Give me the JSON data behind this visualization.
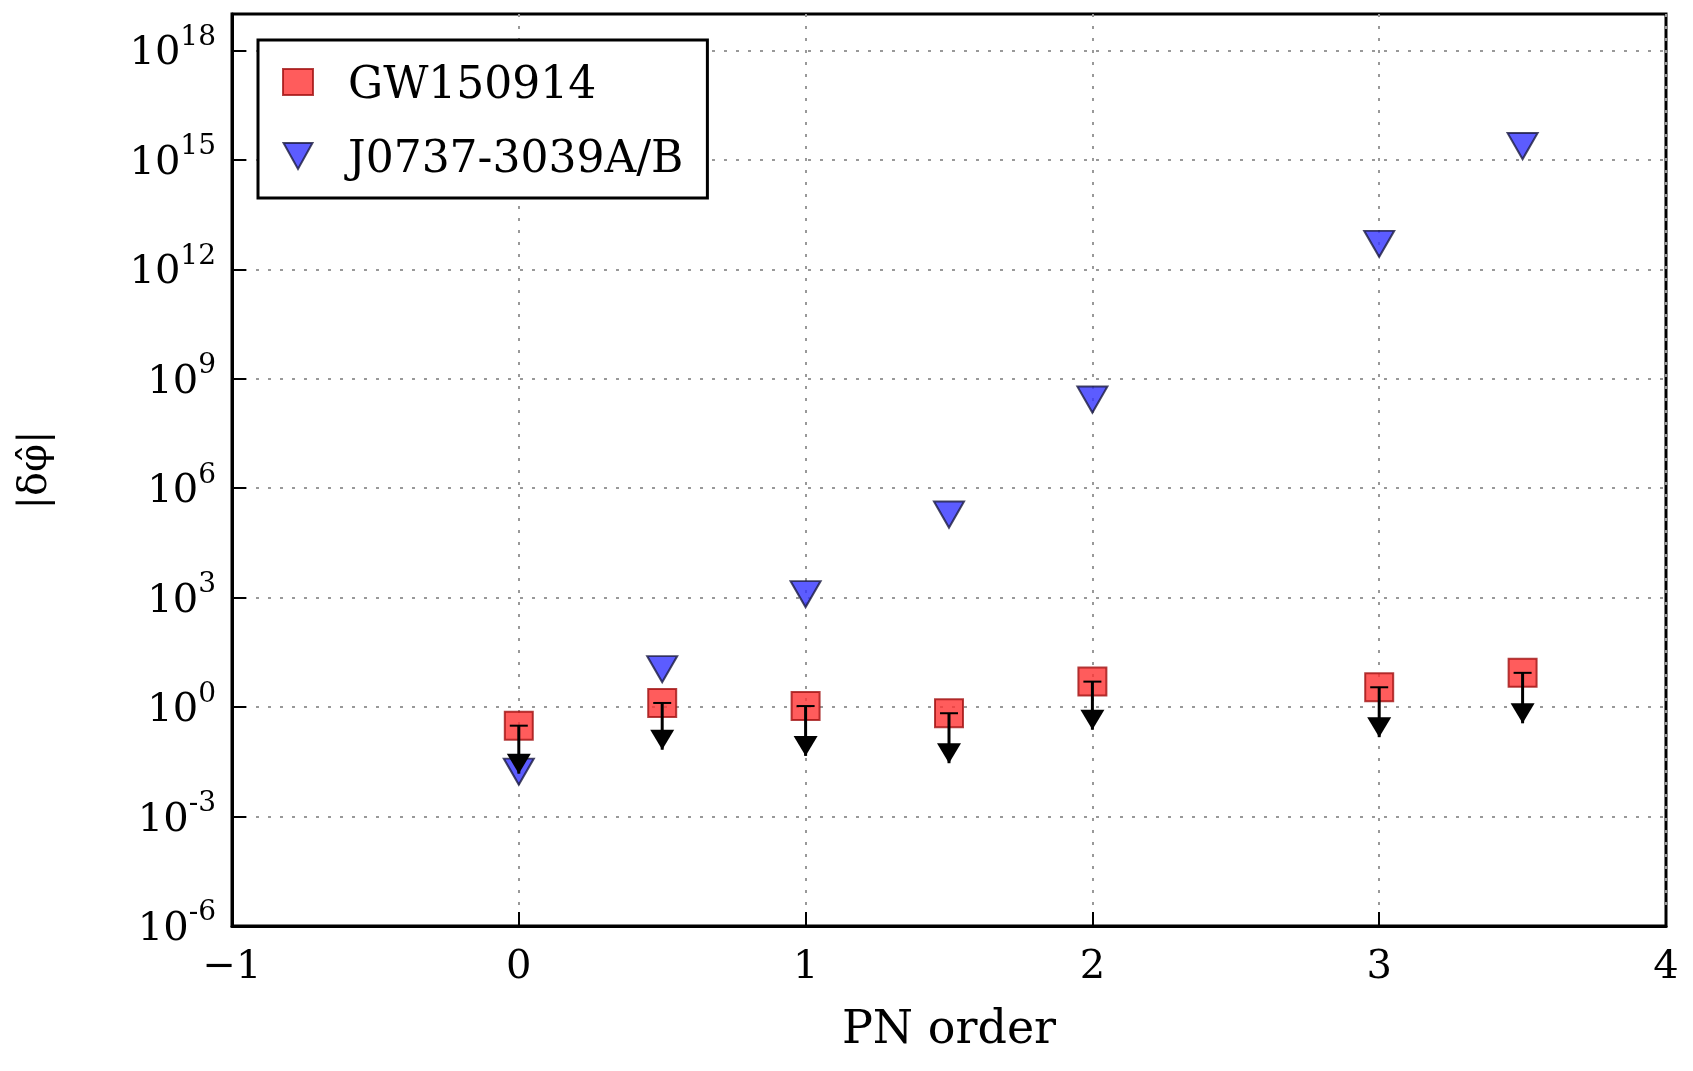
{
  "chart_data": {
    "type": "scatter",
    "xlabel": "PN order",
    "ylabel": "|δφ̂|",
    "log": "y",
    "grid": true,
    "legend": "top left",
    "xlim": [
      -1,
      4
    ],
    "xticks": [
      {
        "value": -1,
        "label": "−1"
      },
      0,
      1,
      2,
      3,
      4
    ],
    "ylim": [
      1e-06,
      1e+19
    ],
    "yticks": [
      {
        "value": 1e-06,
        "label": "10$^{-6}$"
      },
      {
        "value": 0.001,
        "label": "10$^{-3}$"
      },
      {
        "value": 1,
        "label": "10$^{0}$"
      },
      {
        "value": 1000.0,
        "label": "10$^{3}$"
      },
      {
        "value": 1000000.0,
        "label": "10$^{6}$"
      },
      {
        "value": 1000000000.0,
        "label": "10$^{9}$"
      },
      {
        "value": 1000000000000.0,
        "label": "10$^{12}$"
      },
      {
        "value": 1000000000000000.0,
        "label": "10$^{15}$"
      },
      {
        "value": 1e+18,
        "label": "10$^{18}$"
      }
    ],
    "series": [
      {
        "name": "GW150914",
        "color": "#ff3333",
        "marker": "square",
        "x": [
          0,
          0.5,
          1,
          1.5,
          2,
          3,
          3.5
        ],
        "values": [
          0.31,
          1.3,
          1.07,
          0.68,
          5.0,
          3.5,
          8.7
        ],
        "errors": [
          [
            0.015,
            0.31
          ],
          [
            0.068,
            1.3
          ],
          [
            0.046,
            1.07
          ],
          [
            0.029,
            0.68
          ],
          [
            0.24,
            5.0
          ],
          [
            0.15,
            3.5
          ],
          [
            0.36,
            8.7
          ]
        ]
      },
      {
        "name": "J0737-3039A/B",
        "color": "#3333ff",
        "marker": "triangle",
        "x": [
          0,
          0.5,
          1,
          1.5,
          2,
          3,
          3.5
        ],
        "values": [
          0.017,
          11,
          1250,
          190000.0,
          270000000.0,
          5000000000000.0,
          2400000000000000.0
        ]
      }
    ]
  }
}
